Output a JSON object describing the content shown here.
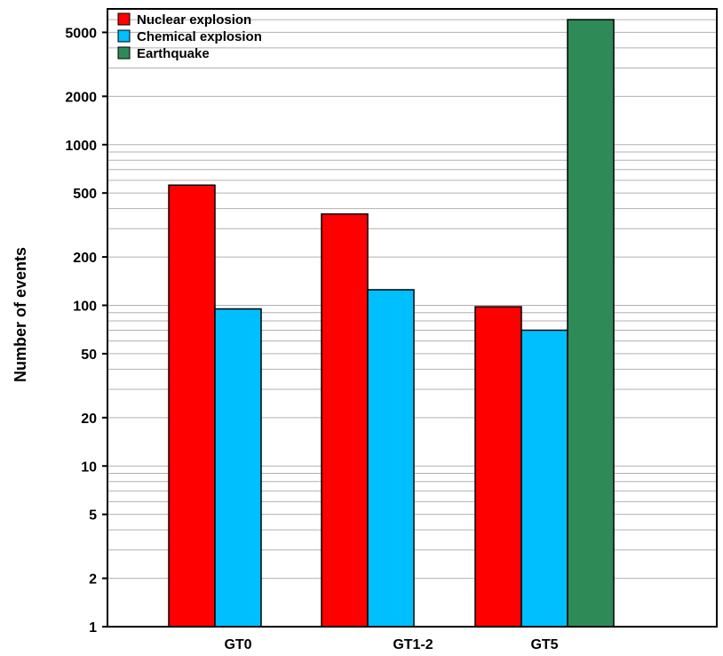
{
  "chart_data": {
    "type": "bar",
    "ylabel": "Number of events",
    "yscale": "log",
    "ylim": [
      1,
      7000
    ],
    "categories": [
      "GT0",
      "GT1-2",
      "GT5"
    ],
    "series": [
      {
        "name": "Nuclear explosion",
        "color": "#ff0000",
        "values": [
          560,
          370,
          98
        ]
      },
      {
        "name": "Chemical explosion",
        "color": "#00bfff",
        "values": [
          95,
          125,
          70
        ]
      },
      {
        "name": "Earthquake",
        "color": "#2e8b57",
        "values": [
          null,
          null,
          6000
        ]
      }
    ],
    "ytick_labels": [
      "1",
      "2",
      "5",
      "10",
      "20",
      "50",
      "100",
      "200",
      "500",
      "1000",
      "2000",
      "5000"
    ],
    "grid": "horizontal, minor log gridlines",
    "legend_position": "top-left"
  }
}
